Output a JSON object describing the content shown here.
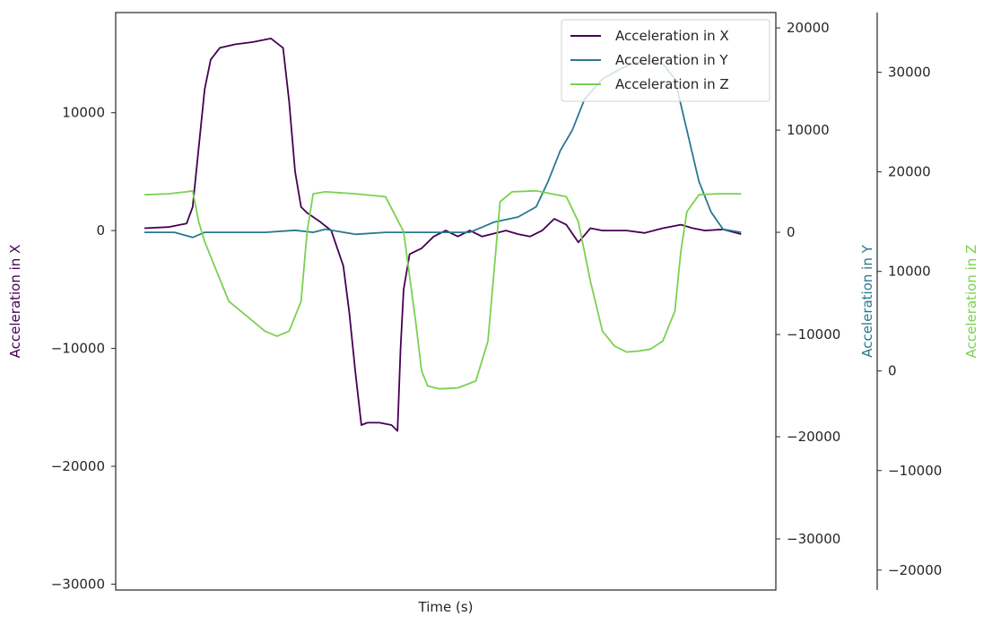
{
  "chart_data": {
    "type": "line",
    "xlabel": "Time (s)",
    "legend_position": "top-right",
    "grid": false,
    "x_range": [
      0,
      1000
    ],
    "axes": [
      {
        "id": "x",
        "label": "Acceleration in X",
        "color": "#440154",
        "side": "left",
        "ylim": [
          -30500,
          18500
        ],
        "ticks": [
          -30000,
          -20000,
          -10000,
          0,
          10000
        ],
        "tick_labels": [
          "−30000",
          "−20000",
          "−10000",
          "0",
          "10000"
        ]
      },
      {
        "id": "y",
        "label": "Acceleration in Y",
        "color": "#2a788e",
        "side": "right",
        "ylim": [
          -35000,
          21500
        ],
        "ticks": [
          -30000,
          -20000,
          -10000,
          0,
          10000,
          20000
        ],
        "tick_labels": [
          "−30000",
          "−20000",
          "−10000",
          "0",
          "10000",
          "20000"
        ]
      },
      {
        "id": "z",
        "label": "Acceleration in Z",
        "color": "#7ad151",
        "side": "right-outer",
        "ylim": [
          -22000,
          36000
        ],
        "ticks": [
          -20000,
          -10000,
          0,
          10000,
          20000,
          30000
        ],
        "tick_labels": [
          "−20000",
          "−10000",
          "0",
          "10000",
          "20000",
          "30000"
        ]
      }
    ],
    "series": [
      {
        "name": "Acceleration in X",
        "axis": "x",
        "color": "#440154",
        "points": [
          [
            0,
            200
          ],
          [
            40,
            300
          ],
          [
            70,
            600
          ],
          [
            80,
            2000
          ],
          [
            90,
            7000
          ],
          [
            100,
            12000
          ],
          [
            110,
            14500
          ],
          [
            125,
            15500
          ],
          [
            150,
            15800
          ],
          [
            180,
            16000
          ],
          [
            210,
            16300
          ],
          [
            230,
            15500
          ],
          [
            240,
            11000
          ],
          [
            250,
            5000
          ],
          [
            260,
            2000
          ],
          [
            270,
            1500
          ],
          [
            290,
            800
          ],
          [
            310,
            0
          ],
          [
            330,
            -3000
          ],
          [
            340,
            -7000
          ],
          [
            350,
            -12000
          ],
          [
            360,
            -16500
          ],
          [
            370,
            -16300
          ],
          [
            390,
            -16300
          ],
          [
            410,
            -16500
          ],
          [
            420,
            -17000
          ],
          [
            425,
            -10000
          ],
          [
            430,
            -5000
          ],
          [
            440,
            -2000
          ],
          [
            460,
            -1500
          ],
          [
            480,
            -500
          ],
          [
            500,
            0
          ],
          [
            520,
            -500
          ],
          [
            540,
            0
          ],
          [
            560,
            -500
          ],
          [
            600,
            0
          ],
          [
            620,
            -300
          ],
          [
            640,
            -500
          ],
          [
            660,
            0
          ],
          [
            680,
            1000
          ],
          [
            700,
            500
          ],
          [
            720,
            -1000
          ],
          [
            740,
            200
          ],
          [
            760,
            0
          ],
          [
            800,
            0
          ],
          [
            830,
            -200
          ],
          [
            860,
            200
          ],
          [
            890,
            500
          ],
          [
            910,
            200
          ],
          [
            930,
            0
          ],
          [
            960,
            100
          ],
          [
            990,
            -300
          ]
        ]
      },
      {
        "name": "Acceleration in Y",
        "axis": "y",
        "color": "#2a788e",
        "points": [
          [
            0,
            0
          ],
          [
            50,
            0
          ],
          [
            80,
            -500
          ],
          [
            100,
            0
          ],
          [
            150,
            0
          ],
          [
            200,
            0
          ],
          [
            250,
            200
          ],
          [
            280,
            0
          ],
          [
            300,
            300
          ],
          [
            350,
            -200
          ],
          [
            400,
            0
          ],
          [
            450,
            0
          ],
          [
            500,
            0
          ],
          [
            540,
            0
          ],
          [
            580,
            1000
          ],
          [
            620,
            1500
          ],
          [
            650,
            2500
          ],
          [
            670,
            5000
          ],
          [
            690,
            8000
          ],
          [
            710,
            10000
          ],
          [
            730,
            13000
          ],
          [
            760,
            15000
          ],
          [
            790,
            16000
          ],
          [
            810,
            16500
          ],
          [
            830,
            16800
          ],
          [
            860,
            16500
          ],
          [
            880,
            15000
          ],
          [
            900,
            10000
          ],
          [
            920,
            5000
          ],
          [
            940,
            2000
          ],
          [
            960,
            300
          ],
          [
            990,
            0
          ]
        ]
      },
      {
        "name": "Acceleration in Z",
        "axis": "z",
        "color": "#7ad151",
        "points": [
          [
            0,
            17700
          ],
          [
            40,
            17800
          ],
          [
            70,
            18000
          ],
          [
            80,
            18100
          ],
          [
            90,
            15000
          ],
          [
            100,
            13000
          ],
          [
            120,
            10000
          ],
          [
            140,
            7000
          ],
          [
            160,
            6000
          ],
          [
            180,
            5000
          ],
          [
            200,
            4000
          ],
          [
            220,
            3500
          ],
          [
            240,
            4000
          ],
          [
            260,
            7000
          ],
          [
            270,
            14000
          ],
          [
            280,
            17800
          ],
          [
            300,
            18000
          ],
          [
            350,
            17800
          ],
          [
            400,
            17500
          ],
          [
            430,
            14000
          ],
          [
            450,
            5000
          ],
          [
            460,
            0
          ],
          [
            470,
            -1500
          ],
          [
            490,
            -1800
          ],
          [
            520,
            -1700
          ],
          [
            550,
            -1000
          ],
          [
            570,
            3000
          ],
          [
            580,
            10000
          ],
          [
            590,
            17000
          ],
          [
            610,
            18000
          ],
          [
            650,
            18100
          ],
          [
            700,
            17500
          ],
          [
            720,
            15000
          ],
          [
            740,
            9000
          ],
          [
            760,
            4000
          ],
          [
            780,
            2500
          ],
          [
            800,
            1900
          ],
          [
            820,
            2000
          ],
          [
            840,
            2200
          ],
          [
            860,
            3000
          ],
          [
            880,
            6000
          ],
          [
            890,
            12000
          ],
          [
            900,
            16000
          ],
          [
            920,
            17700
          ],
          [
            950,
            17800
          ],
          [
            990,
            17800
          ]
        ]
      }
    ]
  }
}
